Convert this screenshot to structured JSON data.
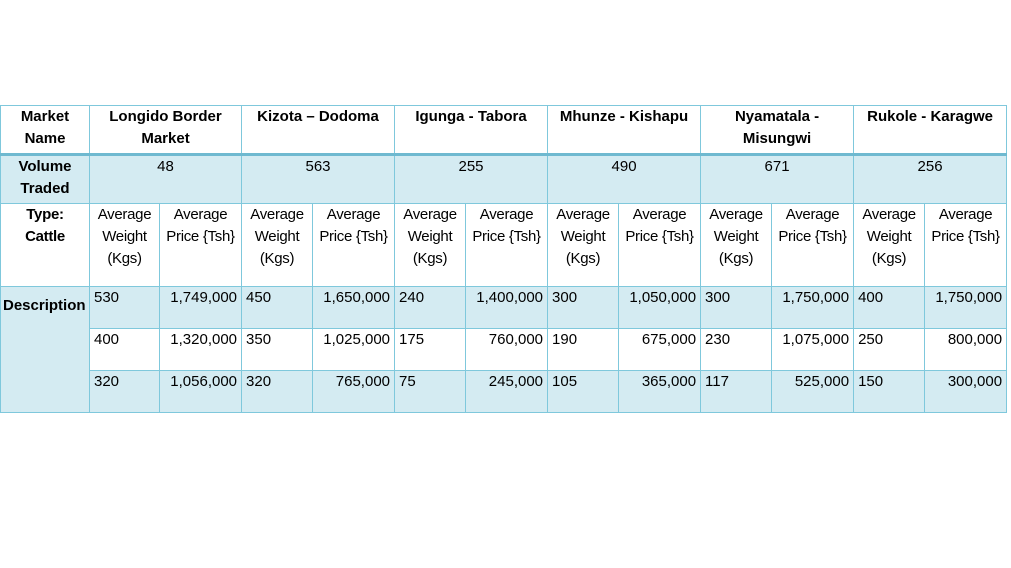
{
  "table": {
    "corner_label": "Market Name",
    "markets": [
      "Longido Border Market",
      "Kizota – Dodoma",
      "Igunga  - Tabora",
      "Mhunze - Kishapu",
      "Nyamatala - Misungwi",
      "Rukole - Karagwe"
    ],
    "volume_label": "Volume Traded",
    "volumes": [
      "48",
      "563",
      "255",
      "490",
      "671",
      "256"
    ],
    "type_label": "Type: Cattle",
    "weight_header": "Average Weight (Kgs)",
    "price_header": "Average Price {Tsh}",
    "description_label": "Description",
    "rows": [
      [
        "530",
        "1,749,000",
        "450",
        "1,650,000",
        "240",
        "1,400,000",
        "300",
        "1,050,000",
        "300",
        "1,750,000",
        "400",
        "1,750,000"
      ],
      [
        "400",
        "1,320,000",
        "350",
        "1,025,000",
        "175",
        "760,000",
        "190",
        "675,000",
        "230",
        "1,075,000",
        "250",
        "800,000"
      ],
      [
        "320",
        "1,056,000",
        "320",
        "765,000",
        "75",
        "245,000",
        "105",
        "365,000",
        "117",
        "525,000",
        "150",
        "300,000"
      ]
    ]
  }
}
